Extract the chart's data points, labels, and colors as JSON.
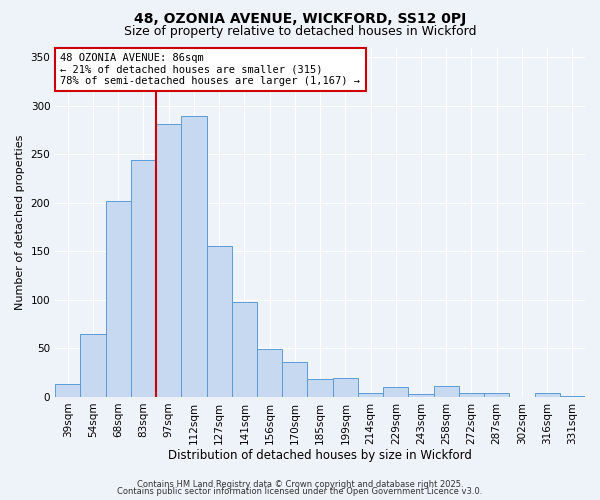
{
  "title1": "48, OZONIA AVENUE, WICKFORD, SS12 0PJ",
  "title2": "Size of property relative to detached houses in Wickford",
  "xlabel": "Distribution of detached houses by size in Wickford",
  "ylabel": "Number of detached properties",
  "bar_labels": [
    "39sqm",
    "54sqm",
    "68sqm",
    "83sqm",
    "97sqm",
    "112sqm",
    "127sqm",
    "141sqm",
    "156sqm",
    "170sqm",
    "185sqm",
    "199sqm",
    "214sqm",
    "229sqm",
    "243sqm",
    "258sqm",
    "272sqm",
    "287sqm",
    "302sqm",
    "316sqm",
    "331sqm"
  ],
  "bar_values": [
    13,
    65,
    202,
    244,
    281,
    289,
    155,
    98,
    49,
    36,
    18,
    20,
    4,
    10,
    3,
    11,
    4,
    4,
    0,
    4,
    1
  ],
  "bar_color": "#c6d9f0",
  "bar_edge_color": "#5b9bd5",
  "vline_x": 3.5,
  "vline_color": "#cc0000",
  "annotation_text": "48 OZONIA AVENUE: 86sqm\n← 21% of detached houses are smaller (315)\n78% of semi-detached houses are larger (1,167) →",
  "annotation_box_color": "#ffffff",
  "annotation_box_edge_color": "#cc0000",
  "ylim": [
    0,
    360
  ],
  "yticks": [
    0,
    50,
    100,
    150,
    200,
    250,
    300,
    350
  ],
  "footer1": "Contains HM Land Registry data © Crown copyright and database right 2025.",
  "footer2": "Contains public sector information licensed under the Open Government Licence v3.0.",
  "bg_color": "#eef2f9",
  "title1_fontsize": 10,
  "title2_fontsize": 9,
  "xlabel_fontsize": 8.5,
  "ylabel_fontsize": 8,
  "tick_fontsize": 7.5,
  "annotation_fontsize": 7.5,
  "footer_fontsize": 6
}
